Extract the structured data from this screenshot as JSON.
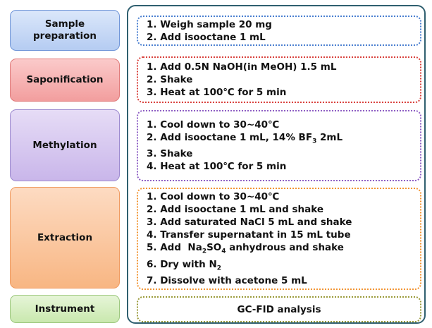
{
  "stages": [
    {
      "label": "Sample\npreparation",
      "steps": [
        "1. Weigh sample 20 mg",
        "2. Add isooctane 1 mL"
      ]
    },
    {
      "label": "Saponification",
      "steps": [
        "1. Add 0.5N NaOH(in MeOH) 1.5 mL",
        "2. Shake",
        "3. Heat at 100℃ for 5 min"
      ]
    },
    {
      "label": "Methylation",
      "steps": [
        "1. Cool down to 30~40℃",
        [
          {
            "text": "2. Add isooctane 1 mL, 14% BF"
          },
          {
            "sub": "3"
          },
          {
            "text": " 2mL"
          }
        ],
        "3. Shake",
        "4. Heat at 100℃ for 5 min"
      ]
    },
    {
      "label": "Extraction",
      "steps": [
        "1. Cool down to 30~40℃",
        "2. Add isooctane 1 mL and shake",
        "3. Add saturated NaCl 5 mL and shake",
        "4. Transfer supernatant in 15 mL tube",
        [
          {
            "text": "5. Add  Na"
          },
          {
            "sub": "2"
          },
          {
            "text": "SO"
          },
          {
            "sub": "4"
          },
          {
            "text": " anhydrous and shake"
          }
        ],
        [
          {
            "text": "6. Dry with N"
          },
          {
            "sub": "2"
          }
        ],
        "7. Dissolve with acetone 5 mL"
      ]
    },
    {
      "label": "Instrument",
      "steps": [
        "GC-FID analysis"
      ]
    }
  ]
}
